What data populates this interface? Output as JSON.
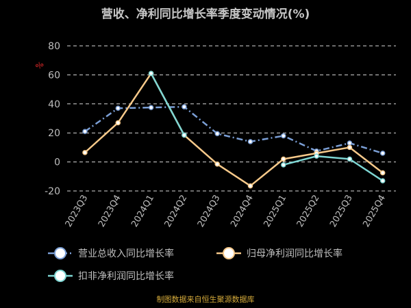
{
  "chart_data": {
    "type": "line",
    "title": "营收、净利同比增长率季度变动情况(%)",
    "source": "制图数据来自恒生聚源数据库",
    "categories": [
      "2023Q3",
      "2023Q4",
      "2024Q1",
      "2024Q2",
      "2024Q3",
      "2024Q4",
      "2025Q1",
      "2025Q2",
      "2025Q3",
      "2025Q4"
    ],
    "ylim": [
      -20,
      80
    ],
    "yticks": [
      -20,
      0,
      20,
      40,
      60,
      80
    ],
    "grid": true,
    "legend_placement": "bottom",
    "series": [
      {
        "name": "营业总收入同比增长率",
        "color": "#7b9fd6",
        "dashed": true,
        "values": [
          21,
          37,
          37.5,
          38,
          19.5,
          14,
          18,
          7.5,
          13,
          6
        ]
      },
      {
        "name": "归母净利润同比增长率",
        "color": "#f7c98a",
        "dashed": false,
        "values": [
          6.5,
          27,
          61,
          18.5,
          -1.5,
          -16.5,
          2,
          6,
          10,
          -7.5
        ]
      },
      {
        "name": "扣非净利润同比增长率",
        "color": "#7ed6d3",
        "dashed": false,
        "values": [
          null,
          null,
          61,
          18.5,
          null,
          null,
          -2,
          4,
          2,
          -13
        ]
      }
    ]
  },
  "colors": {
    "background": "#000000",
    "title": "#c7c7c7",
    "grid": "#d9d9d9",
    "axis_text": "#bfbfbf",
    "source": "#d4a93a",
    "marker_fill": "#ffffff",
    "y_mark": "#b02020"
  }
}
